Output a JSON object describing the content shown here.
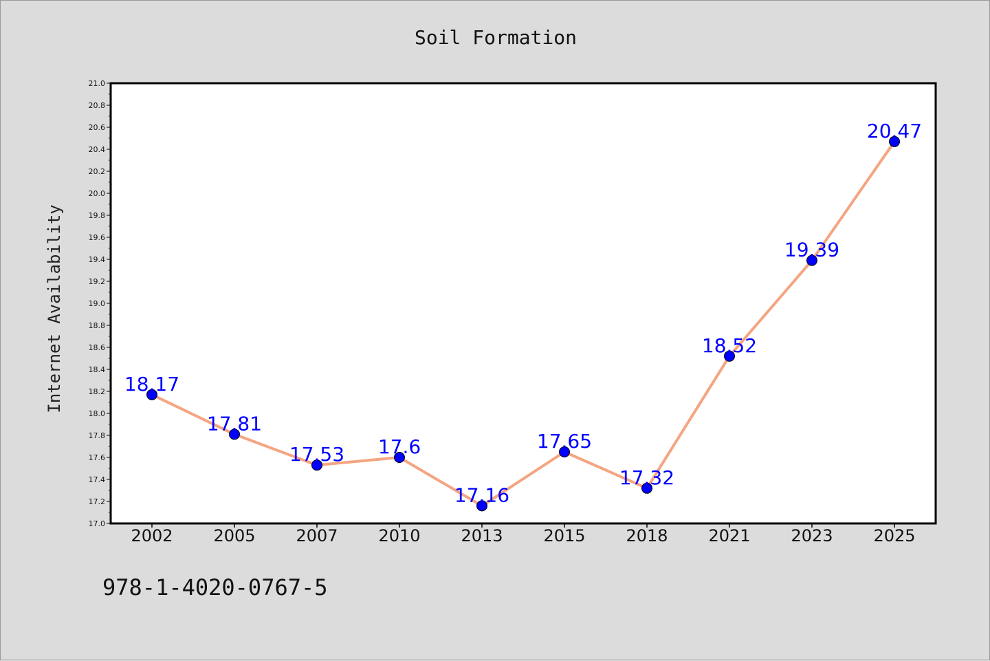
{
  "chart_data": {
    "type": "line",
    "title": "Soil Formation",
    "xlabel": "",
    "ylabel": "Internet Availability",
    "categories": [
      "2002",
      "2005",
      "2007",
      "2010",
      "2013",
      "2015",
      "2018",
      "2021",
      "2023",
      "2025"
    ],
    "series": [
      {
        "values": [
          18.17,
          17.81,
          17.53,
          17.6,
          17.16,
          17.65,
          17.32,
          18.52,
          19.39,
          20.47
        ],
        "labels": [
          "18.17",
          "17.81",
          "17.53",
          "17.6",
          "17.16",
          "17.65",
          "17.32",
          "18.52",
          "19.39",
          "20.47"
        ],
        "line_color": "#f4a582",
        "marker_color": "#0000ff",
        "label_color": "#0000ff"
      }
    ],
    "ylim": [
      17.0,
      21.0
    ],
    "yticks": [
      "17.0",
      "17.2",
      "17.4",
      "17.6",
      "17.8",
      "18.0",
      "18.2",
      "18.4",
      "18.6",
      "18.8",
      "19.0",
      "19.2",
      "19.4",
      "19.6",
      "19.8",
      "20.0",
      "20.2",
      "20.4",
      "20.6",
      "20.8",
      "21.0"
    ],
    "grid": false,
    "legend": "none"
  },
  "footer_code": "978-1-4020-0767-5"
}
